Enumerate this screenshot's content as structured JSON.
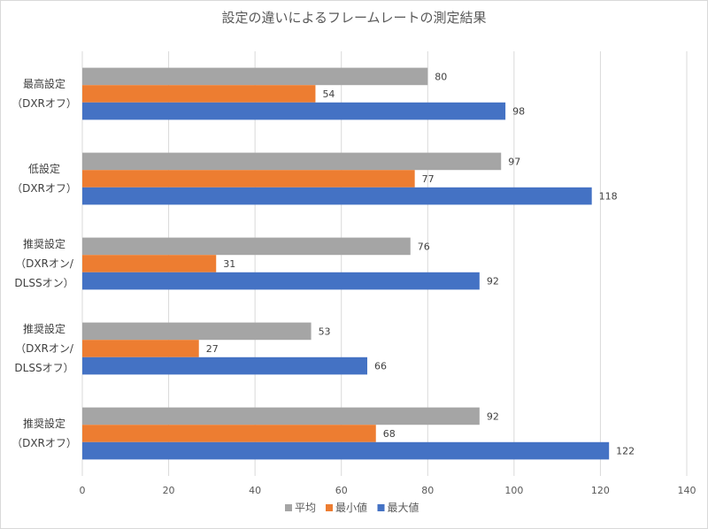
{
  "chart_data": {
    "type": "bar",
    "orientation": "horizontal",
    "title": "設定の違いによるフレームレートの測定結果",
    "categories": [
      [
        "最高設定",
        "（DXRオフ）"
      ],
      [
        "低設定",
        "（DXRオフ）"
      ],
      [
        "推奨設定",
        "（DXRオン/",
        "DLSSオン）"
      ],
      [
        "推奨設定",
        "（DXRオン/",
        "DLSSオフ）"
      ],
      [
        "推奨設定",
        "（DXRオフ）"
      ]
    ],
    "series": [
      {
        "name": "平均",
        "color": "#a5a5a5",
        "values": [
          80,
          97,
          76,
          53,
          92
        ]
      },
      {
        "name": "最小値",
        "color": "#ed7d31",
        "values": [
          54,
          77,
          31,
          27,
          68
        ]
      },
      {
        "name": "最大値",
        "color": "#4472c4",
        "values": [
          98,
          118,
          92,
          66,
          122
        ]
      }
    ],
    "xlim": [
      0,
      140
    ],
    "xticks": [
      0,
      20,
      40,
      60,
      80,
      100,
      120,
      140
    ],
    "grid": true,
    "data_labels": true,
    "legend": "bottom"
  }
}
